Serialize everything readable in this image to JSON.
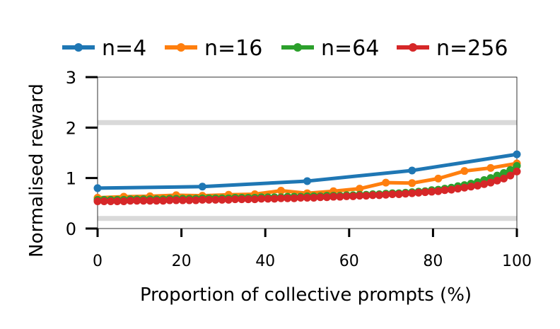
{
  "chart_data": {
    "type": "line",
    "xlabel": "Proportion of collective prompts (%)",
    "ylabel": "Normalised reward",
    "xlim": [
      0,
      100
    ],
    "ylim": [
      0,
      3
    ],
    "xticks": [
      "0",
      "20",
      "40",
      "60",
      "80",
      "100"
    ],
    "yticks": [
      "0",
      "1",
      "2",
      "3"
    ],
    "reference_lines": [
      2.1,
      0.2
    ],
    "reference_color": "#d9d9d9",
    "legend_position": "top",
    "grid": false,
    "series": [
      {
        "name": "n=4",
        "color": "#1f77b4",
        "x": [
          0,
          25,
          50,
          75,
          100
        ],
        "y": [
          0.8,
          0.83,
          0.94,
          1.15,
          1.47
        ]
      },
      {
        "name": "n=16",
        "color": "#ff7f0e",
        "x": [
          0,
          6.25,
          12.5,
          18.75,
          25,
          31.25,
          37.5,
          43.75,
          50,
          56.25,
          62.5,
          68.75,
          75,
          81.25,
          87.5,
          93.75,
          100
        ],
        "y": [
          0.61,
          0.63,
          0.64,
          0.66,
          0.65,
          0.67,
          0.68,
          0.75,
          0.7,
          0.74,
          0.79,
          0.91,
          0.9,
          0.99,
          1.14,
          1.2,
          1.29
        ]
      },
      {
        "name": "n=64",
        "color": "#2ca02c",
        "x": [
          0,
          1.56,
          3.13,
          4.69,
          6.25,
          7.81,
          9.38,
          10.94,
          12.5,
          14.06,
          15.63,
          17.19,
          18.75,
          20.31,
          21.88,
          23.44,
          25,
          26.56,
          28.13,
          29.69,
          31.25,
          32.81,
          34.38,
          35.94,
          37.5,
          39.06,
          40.63,
          42.19,
          43.75,
          45.31,
          46.88,
          48.44,
          50,
          51.56,
          53.13,
          54.69,
          56.25,
          57.81,
          59.38,
          60.94,
          62.5,
          64.06,
          65.63,
          67.19,
          68.75,
          70.31,
          71.88,
          73.44,
          75,
          76.56,
          78.13,
          79.69,
          81.25,
          82.81,
          84.38,
          85.94,
          87.5,
          89.06,
          90.63,
          92.19,
          93.75,
          95.31,
          96.88,
          98.44,
          100
        ],
        "y": [
          0.57,
          0.57,
          0.57,
          0.57,
          0.57,
          0.58,
          0.58,
          0.58,
          0.58,
          0.58,
          0.58,
          0.59,
          0.59,
          0.59,
          0.59,
          0.59,
          0.6,
          0.6,
          0.6,
          0.6,
          0.6,
          0.61,
          0.61,
          0.61,
          0.61,
          0.62,
          0.62,
          0.62,
          0.62,
          0.63,
          0.63,
          0.63,
          0.64,
          0.64,
          0.64,
          0.65,
          0.65,
          0.65,
          0.66,
          0.66,
          0.67,
          0.67,
          0.68,
          0.68,
          0.69,
          0.7,
          0.7,
          0.71,
          0.72,
          0.73,
          0.74,
          0.76,
          0.77,
          0.79,
          0.81,
          0.84,
          0.86,
          0.89,
          0.92,
          0.96,
          1.0,
          1.05,
          1.1,
          1.16,
          1.24
        ]
      },
      {
        "name": "n=256",
        "color": "#d62728",
        "x": [
          0,
          1.56,
          3.13,
          4.69,
          6.25,
          7.81,
          9.38,
          10.94,
          12.5,
          14.06,
          15.63,
          17.19,
          18.75,
          20.31,
          21.88,
          23.44,
          25,
          26.56,
          28.13,
          29.69,
          31.25,
          32.81,
          34.38,
          35.94,
          37.5,
          39.06,
          40.63,
          42.19,
          43.75,
          45.31,
          46.88,
          48.44,
          50,
          51.56,
          53.13,
          54.69,
          56.25,
          57.81,
          59.38,
          60.94,
          62.5,
          64.06,
          65.63,
          67.19,
          68.75,
          70.31,
          71.88,
          73.44,
          75,
          76.56,
          78.13,
          79.69,
          81.25,
          82.81,
          84.38,
          85.94,
          87.5,
          89.06,
          90.63,
          92.19,
          93.75,
          95.31,
          96.88,
          98.44,
          100
        ],
        "y": [
          0.54,
          0.54,
          0.54,
          0.54,
          0.54,
          0.55,
          0.55,
          0.55,
          0.55,
          0.55,
          0.55,
          0.56,
          0.56,
          0.56,
          0.56,
          0.56,
          0.57,
          0.57,
          0.57,
          0.57,
          0.57,
          0.58,
          0.58,
          0.58,
          0.58,
          0.59,
          0.59,
          0.59,
          0.6,
          0.6,
          0.6,
          0.61,
          0.61,
          0.61,
          0.62,
          0.62,
          0.63,
          0.63,
          0.64,
          0.64,
          0.65,
          0.65,
          0.66,
          0.66,
          0.67,
          0.68,
          0.68,
          0.69,
          0.7,
          0.71,
          0.72,
          0.73,
          0.74,
          0.76,
          0.77,
          0.79,
          0.81,
          0.83,
          0.85,
          0.88,
          0.91,
          0.95,
          0.99,
          1.05,
          1.13
        ]
      }
    ]
  }
}
